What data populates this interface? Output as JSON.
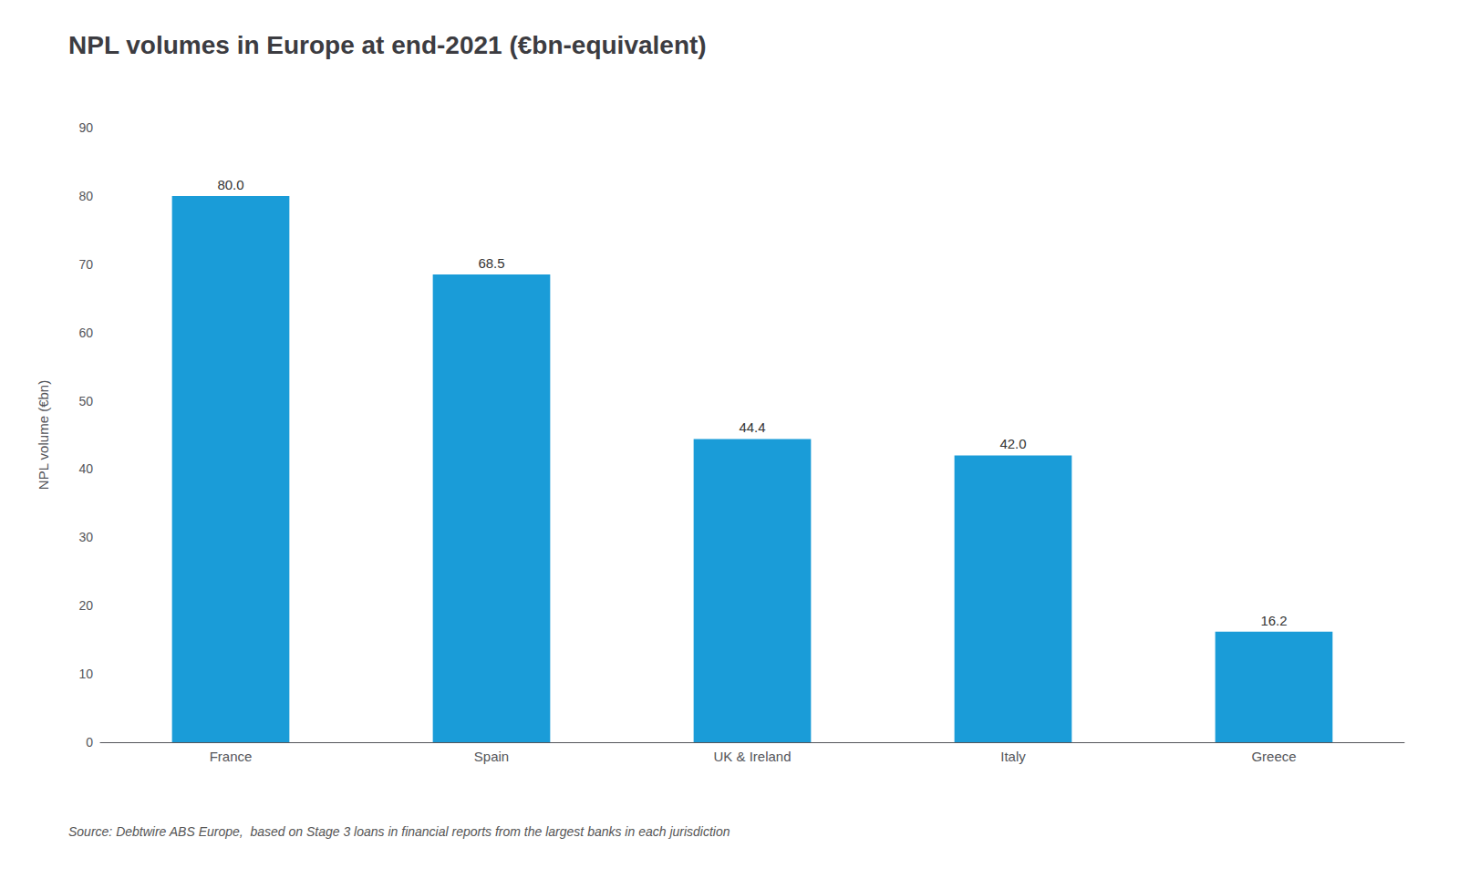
{
  "chart_data": {
    "type": "bar",
    "title": "NPL volumes in Europe at end-2021 (€bn-equivalent)",
    "categories": [
      "France",
      "Spain",
      "UK & Ireland",
      "Italy",
      "Greece"
    ],
    "values": [
      80.0,
      68.5,
      44.4,
      42.0,
      16.2
    ],
    "value_labels": [
      "80.0",
      "68.5",
      "44.4",
      "42.0",
      "16.2"
    ],
    "color": "#1a9cd8",
    "ylabel": "NPL volume (€bn)",
    "ylim": [
      0,
      90
    ],
    "yticks": [
      0,
      10,
      20,
      30,
      40,
      50,
      60,
      70,
      80,
      90
    ],
    "grid": false,
    "data_labels": true,
    "annotations": [
      "Source: Debtwire ABS Europe,  based on Stage 3 loans in financial reports from the largest banks in each jurisdiction"
    ]
  }
}
